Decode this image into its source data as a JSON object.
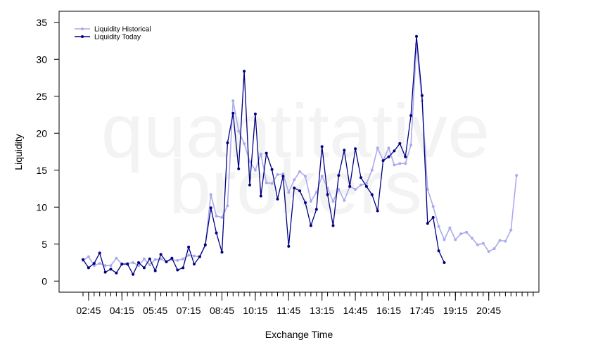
{
  "watermark": [
    "quantitative",
    "brokers"
  ],
  "chart_data": {
    "type": "line",
    "xlabel": "Exchange Time",
    "ylabel": "Liquidity",
    "ylim": [
      -1.5,
      36.5
    ],
    "yticks": [
      0,
      5,
      10,
      15,
      20,
      25,
      30,
      35
    ],
    "xlim": [
      0,
      82
    ],
    "x_tick_labels": [
      {
        "index": 1,
        "label": "02:45"
      },
      {
        "index": 7,
        "label": "04:15"
      },
      {
        "index": 13,
        "label": "05:45"
      },
      {
        "index": 19,
        "label": "07:15"
      },
      {
        "index": 25,
        "label": "08:45"
      },
      {
        "index": 31,
        "label": "10:15"
      },
      {
        "index": 37,
        "label": "11:45"
      },
      {
        "index": 43,
        "label": "13:15"
      },
      {
        "index": 49,
        "label": "14:45"
      },
      {
        "index": 55,
        "label": "16:15"
      },
      {
        "index": 61,
        "label": "17:45"
      },
      {
        "index": 67,
        "label": "19:15"
      },
      {
        "index": 73,
        "label": "20:45"
      }
    ],
    "x_minor_tick_count": 82,
    "legend": {
      "position": "top-left"
    },
    "series": [
      {
        "name": "Liquidity Historical",
        "color": "#aaaaee",
        "values": [
          2.8,
          3.3,
          2.1,
          2.4,
          2.1,
          2.1,
          3.1,
          2.3,
          2.4,
          2.5,
          2.1,
          3.0,
          2.2,
          2.9,
          3.0,
          2.6,
          2.9,
          2.8,
          3.0,
          3.5,
          3.4,
          3.3,
          4.8,
          11.7,
          8.8,
          8.6,
          10.2,
          24.4,
          20.3,
          18.6,
          16.2,
          15.0,
          17.2,
          13.3,
          13.2,
          14.4,
          14.5,
          12.0,
          13.7,
          14.8,
          14.2,
          10.8,
          12.0,
          14.2,
          12.6,
          10.8,
          12.4,
          10.9,
          12.8,
          12.4,
          13.0,
          13.2,
          15.0,
          18.0,
          16.3,
          18.0,
          15.7,
          15.9,
          15.9,
          18.4,
          32.0,
          24.4,
          12.4,
          10.1,
          7.4,
          5.6,
          7.2,
          5.6,
          6.4,
          6.6,
          5.8,
          4.9,
          5.1,
          4.0,
          4.4,
          5.5,
          5.4,
          6.9,
          14.3
        ]
      },
      {
        "name": "Liquidity Today",
        "color": "#000080",
        "values": [
          2.9,
          1.8,
          2.4,
          3.8,
          1.2,
          1.6,
          1.1,
          2.3,
          2.3,
          0.9,
          2.5,
          1.8,
          3.0,
          1.4,
          3.6,
          2.6,
          3.1,
          1.5,
          1.8,
          4.6,
          2.3,
          3.3,
          4.9,
          9.9,
          6.5,
          3.9,
          18.7,
          22.7,
          15.2,
          28.4,
          13.0,
          22.6,
          11.5,
          17.3,
          15.1,
          11.1,
          14.2,
          4.7,
          12.6,
          12.2,
          10.6,
          7.5,
          9.7,
          18.2,
          11.7,
          7.5,
          14.3,
          17.7,
          12.8,
          17.9,
          14.0,
          12.8,
          11.7,
          9.5,
          16.3,
          16.8,
          17.6,
          18.6,
          16.8,
          22.4,
          33.1,
          25.1,
          7.8,
          8.6,
          4.1,
          2.5
        ]
      }
    ]
  }
}
